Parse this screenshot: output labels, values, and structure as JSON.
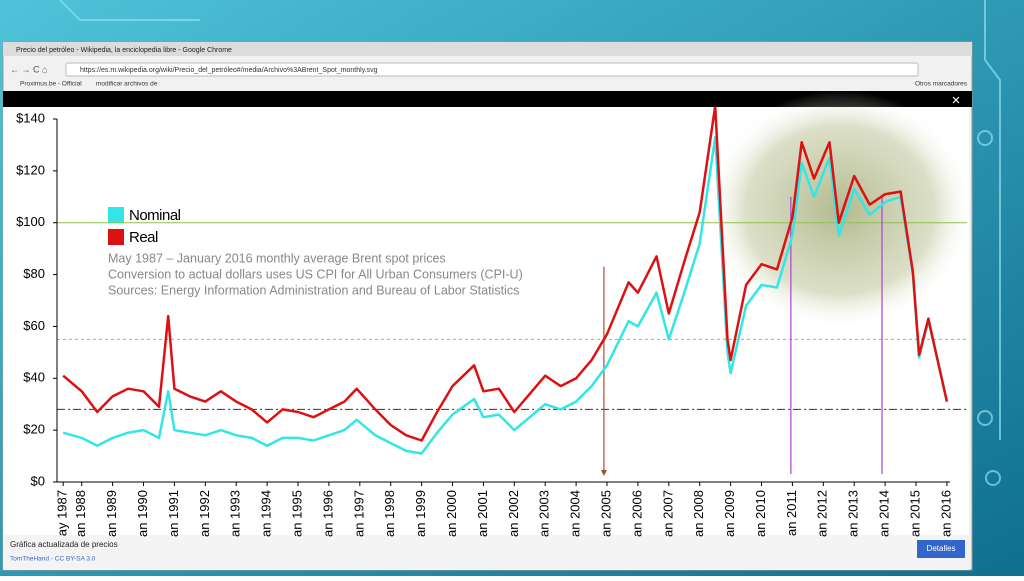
{
  "browser": {
    "window_title": "Precio del petróleo - Wikipedia, la enciclopedia libre - Google Chrome",
    "url": "https://es.m.wikipedia.org/wiki/Precio_del_petróleo#/media/Archivo%3ABrent_Spot_monthly.svg",
    "bookmarks": [
      "Proximus.be - Official",
      "modificar archivos de"
    ],
    "other_bookmarks": "Otros marcadores"
  },
  "caption": {
    "title": "Gráfica actualizada de precios",
    "credit": "TomTheHand - CC BY-SA 3.0",
    "button": "Detalles"
  },
  "chart_data": {
    "type": "line",
    "annotations": [
      "May 1987 – January 2016 monthly average Brent spot prices",
      "Conversion to actual dollars uses US CPI for All Urban Consumers (CPI-U)",
      "Sources: Energy Information Administration and Bureau of Labor Statistics"
    ],
    "x": [
      1987.4,
      1988.0,
      1988.5,
      1989.0,
      1989.5,
      1990.0,
      1990.5,
      1990.8,
      1991.0,
      1991.5,
      1992.0,
      1992.5,
      1993.0,
      1993.5,
      1994.0,
      1994.5,
      1995.0,
      1995.5,
      1996.0,
      1996.5,
      1996.9,
      1997.5,
      1998.0,
      1998.5,
      1999.0,
      1999.5,
      2000.0,
      2000.7,
      2001.0,
      2001.5,
      2002.0,
      2002.5,
      2003.0,
      2003.5,
      2004.0,
      2004.5,
      2005.0,
      2005.7,
      2006.0,
      2006.6,
      2007.0,
      2007.5,
      2008.0,
      2008.5,
      2008.9,
      2009.0,
      2009.5,
      2010.0,
      2010.5,
      2011.0,
      2011.3,
      2011.7,
      2012.2,
      2012.5,
      2013.0,
      2013.5,
      2014.0,
      2014.5,
      2014.9,
      2015.1,
      2015.4,
      2015.7,
      2016.0
    ],
    "series": [
      {
        "name": "Nominal",
        "color": "#33e6e6",
        "values": [
          19,
          17,
          14,
          17,
          19,
          20,
          17,
          35,
          20,
          19,
          18,
          20,
          18,
          17,
          14,
          17,
          17,
          16,
          18,
          20,
          24,
          18,
          15,
          12,
          11,
          19,
          26,
          32,
          25,
          26,
          20,
          25,
          30,
          28,
          31,
          37,
          45,
          62,
          60,
          73,
          55,
          73,
          92,
          133,
          50,
          42,
          68,
          76,
          75,
          95,
          123,
          110,
          125,
          95,
          113,
          103,
          108,
          110,
          80,
          48,
          62,
          47,
          31
        ]
      },
      {
        "name": "Real",
        "color": "#dd1111",
        "values": [
          41,
          35,
          27,
          33,
          36,
          35,
          29,
          64,
          36,
          33,
          31,
          35,
          31,
          28,
          23,
          28,
          27,
          25,
          28,
          31,
          36,
          28,
          22,
          18,
          16,
          27,
          37,
          45,
          35,
          36,
          27,
          34,
          41,
          37,
          40,
          47,
          57,
          77,
          73,
          87,
          65,
          85,
          104,
          145,
          55,
          47,
          76,
          84,
          82,
          102,
          131,
          117,
          131,
          100,
          118,
          107,
          111,
          112,
          81,
          49,
          63,
          47,
          31
        ]
      }
    ],
    "ylim": [
      0,
      140
    ],
    "yticks": [
      {
        "value": 0,
        "label": "$0"
      },
      {
        "value": 20,
        "label": "$20"
      },
      {
        "value": 40,
        "label": "$40"
      },
      {
        "value": 60,
        "label": "$60"
      },
      {
        "value": 80,
        "label": "$80"
      },
      {
        "value": 100,
        "label": "$100"
      },
      {
        "value": 120,
        "label": "$120"
      },
      {
        "value": 140,
        "label": "$140"
      }
    ],
    "xlim": [
      1987.2,
      2016.1
    ],
    "xticks": [
      {
        "value": 1987.4,
        "label": "ay 1987"
      },
      {
        "value": 1988,
        "label": "an 1988"
      },
      {
        "value": 1989,
        "label": "an 1989"
      },
      {
        "value": 1990,
        "label": "an 1990"
      },
      {
        "value": 1991,
        "label": "an 1991"
      },
      {
        "value": 1992,
        "label": "an 1992"
      },
      {
        "value": 1993,
        "label": "an 1993"
      },
      {
        "value": 1994,
        "label": "an 1994"
      },
      {
        "value": 1995,
        "label": "an 1995"
      },
      {
        "value": 1996,
        "label": "an 1996"
      },
      {
        "value": 1997,
        "label": "an 1997"
      },
      {
        "value": 1998,
        "label": "an 1998"
      },
      {
        "value": 1999,
        "label": "an 1999"
      },
      {
        "value": 2000,
        "label": "an 2000"
      },
      {
        "value": 2001,
        "label": "an 2001"
      },
      {
        "value": 2002,
        "label": "an 2002"
      },
      {
        "value": 2003,
        "label": "an 2003"
      },
      {
        "value": 2004,
        "label": "an 2004"
      },
      {
        "value": 2005,
        "label": "an 2005"
      },
      {
        "value": 2006,
        "label": "an 2006"
      },
      {
        "value": 2007,
        "label": "an 2007"
      },
      {
        "value": 2008,
        "label": "an 2008"
      },
      {
        "value": 2009,
        "label": "an 2009"
      },
      {
        "value": 2010,
        "label": "an 2010"
      },
      {
        "value": 2011,
        "label": "an 2011"
      },
      {
        "value": 2012,
        "label": "an 2012"
      },
      {
        "value": 2013,
        "label": "an 2013"
      },
      {
        "value": 2014,
        "label": "an 2014"
      },
      {
        "value": 2015,
        "label": "an 2015"
      },
      {
        "value": 2016,
        "label": "an 2016"
      }
    ],
    "hlines": [
      {
        "value": 100,
        "color": "#8bc34a",
        "dash": "none"
      },
      {
        "value": 55,
        "color": "#b5b54a",
        "dash": "3,3"
      },
      {
        "value": 28,
        "color": "#333333",
        "dash": "8,3,2,3"
      }
    ],
    "vlines": [
      {
        "value": 2004.9,
        "top": 83,
        "color": "#a0522d"
      },
      {
        "value": 2010.95,
        "top": 110,
        "color": "#b040d0"
      },
      {
        "value": 2013.9,
        "top": 110,
        "color": "#b040d0"
      }
    ]
  }
}
